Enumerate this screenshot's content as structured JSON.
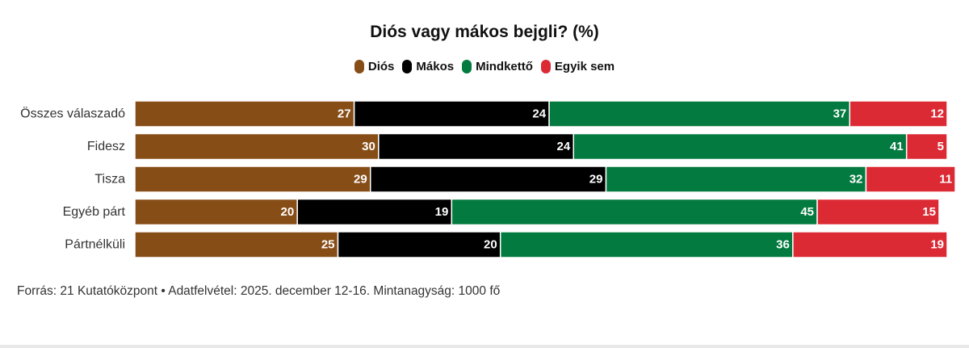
{
  "chart_data": {
    "type": "bar",
    "orientation": "horizontal",
    "stacked": true,
    "title": "Diós vagy mákos bejgli? (%)",
    "categories": [
      "Összes válaszadó",
      "Fidesz",
      "Tisza",
      "Egyéb párt",
      "Pártnélküli"
    ],
    "series": [
      {
        "name": "Diós",
        "color": "#874d17",
        "values": [
          27,
          30,
          29,
          20,
          25
        ]
      },
      {
        "name": "Mákos",
        "color": "#000000",
        "values": [
          24,
          24,
          29,
          19,
          20
        ]
      },
      {
        "name": "Mindkettő",
        "color": "#037a3f",
        "values": [
          37,
          41,
          32,
          45,
          36
        ]
      },
      {
        "name": "Egyik sem",
        "color": "#dc2a35",
        "values": [
          12,
          5,
          11,
          15,
          19
        ]
      }
    ],
    "xlim": [
      0,
      100
    ],
    "legend_position": "top-center",
    "grid": false
  },
  "legend": {
    "items": [
      {
        "label": "Diós",
        "color": "#874d17"
      },
      {
        "label": "Mákos",
        "color": "#000000"
      },
      {
        "label": "Mindkettő",
        "color": "#037a3f"
      },
      {
        "label": "Egyik sem",
        "color": "#dc2a35"
      }
    ]
  },
  "footer": {
    "source": "Forrás: 21 Kutatóközpont • Adatfelvétel: 2025. december 12-16. Mintanagyság: 1000 fő"
  }
}
